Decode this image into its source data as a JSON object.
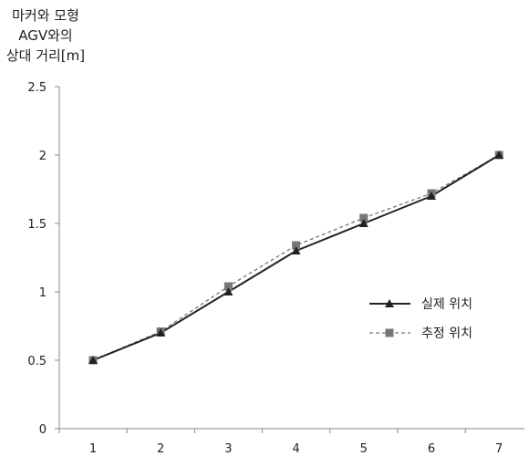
{
  "chart_data": {
    "type": "line",
    "title": "",
    "ylabel_lines": [
      "마커와 모형",
      "AGV와의",
      "상대 거리[m]"
    ],
    "xlabel": "",
    "x": [
      1,
      2,
      3,
      4,
      5,
      6,
      7
    ],
    "ylim": [
      0,
      2.5
    ],
    "y_ticks": [
      0,
      0.5,
      1,
      1.5,
      2,
      2.5
    ],
    "y_tick_labels": [
      "0",
      "0.5",
      "1",
      "1.5",
      "2",
      "2.5"
    ],
    "grid": false,
    "legend_position": "right",
    "series": [
      {
        "name": "실제 위치",
        "values": [
          0.5,
          0.7,
          1.0,
          1.3,
          1.5,
          1.7,
          2.0
        ],
        "color": "#222222",
        "line_style": "solid",
        "marker": "triangle"
      },
      {
        "name": "추정 위치",
        "values": [
          0.5,
          0.71,
          1.04,
          1.34,
          1.54,
          1.72,
          2.0
        ],
        "color": "#777777",
        "line_style": "dashed",
        "marker": "square"
      }
    ]
  }
}
